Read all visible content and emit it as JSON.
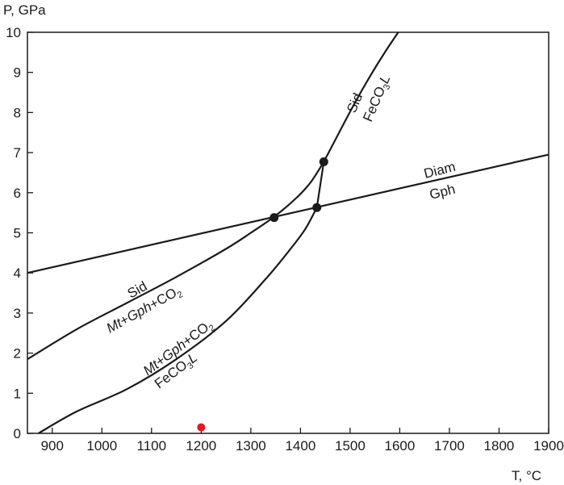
{
  "chart_data": {
    "type": "line",
    "title": "",
    "xlabel": "T, °C",
    "ylabel": "P, GPa",
    "xlim": [
      850,
      1900
    ],
    "ylim": [
      0,
      10
    ],
    "xticks": [
      900,
      1000,
      1100,
      1200,
      1300,
      1400,
      1500,
      1600,
      1700,
      1800,
      1900
    ],
    "yticks": [
      0,
      1,
      2,
      3,
      4,
      5,
      6,
      7,
      8,
      9,
      10
    ],
    "grid": false,
    "series": [
      {
        "id": "diam-gph",
        "x": [
          850,
          1900
        ],
        "y": [
          4.0,
          6.95
        ]
      },
      {
        "id": "sid-mt-gph-co2",
        "x": [
          850,
          950,
          1050,
          1150,
          1250,
          1300,
          1347,
          1390,
          1420,
          1447
        ],
        "y": [
          1.85,
          2.6,
          3.25,
          3.9,
          4.6,
          5.0,
          5.4,
          5.85,
          6.25,
          6.77
        ]
      },
      {
        "id": "sid-feco3l",
        "x": [
          1447,
          1480,
          1510,
          1540,
          1570,
          1597
        ],
        "y": [
          6.77,
          7.55,
          8.25,
          8.9,
          9.5,
          10.0
        ]
      },
      {
        "id": "mt-gph-co2-feco3l",
        "x": [
          872,
          950,
          1050,
          1150,
          1250,
          1330,
          1380,
          1410,
          1433
        ],
        "y": [
          0.0,
          0.55,
          1.1,
          1.85,
          2.8,
          3.85,
          4.6,
          5.1,
          5.63
        ]
      },
      {
        "id": "feco3l-connector",
        "x": [
          1433,
          1440,
          1447
        ],
        "y": [
          5.63,
          6.2,
          6.77
        ]
      }
    ],
    "invariant_points": [
      {
        "x": 1347,
        "y": 5.38
      },
      {
        "x": 1433,
        "y": 5.63
      },
      {
        "x": 1447,
        "y": 6.77
      }
    ],
    "marker": {
      "x": 1200,
      "y": 0.15,
      "color": "#e8171c"
    },
    "labels": {
      "diam": "Diam",
      "gph": "Gph",
      "sid_upper": "Sid",
      "feco3l_upper_main": "FeCO",
      "feco3l_upper_sub": "3",
      "feco3l_upper_tail": "L",
      "sid_lower": "Sid",
      "mt_gph_co2_a_mt": "Mt",
      "mt_gph_co2_a_plus1": "+",
      "mt_gph_co2_a_gph": "Gph",
      "mt_gph_co2_a_plus2": "+CO",
      "mt_gph_co2_a_sub": "2",
      "mt_gph_co2_b_mt": "Mt",
      "mt_gph_co2_b_plus1": "+",
      "mt_gph_co2_b_gph": "Gph",
      "mt_gph_co2_b_plus2": "+CO",
      "mt_gph_co2_b_sub": "2",
      "feco3l_lower_main": "FeCO",
      "feco3l_lower_sub": "3",
      "feco3l_lower_tail": "L"
    }
  },
  "colors": {
    "ink": "#1a1a1a",
    "marker": "#e8171c"
  }
}
